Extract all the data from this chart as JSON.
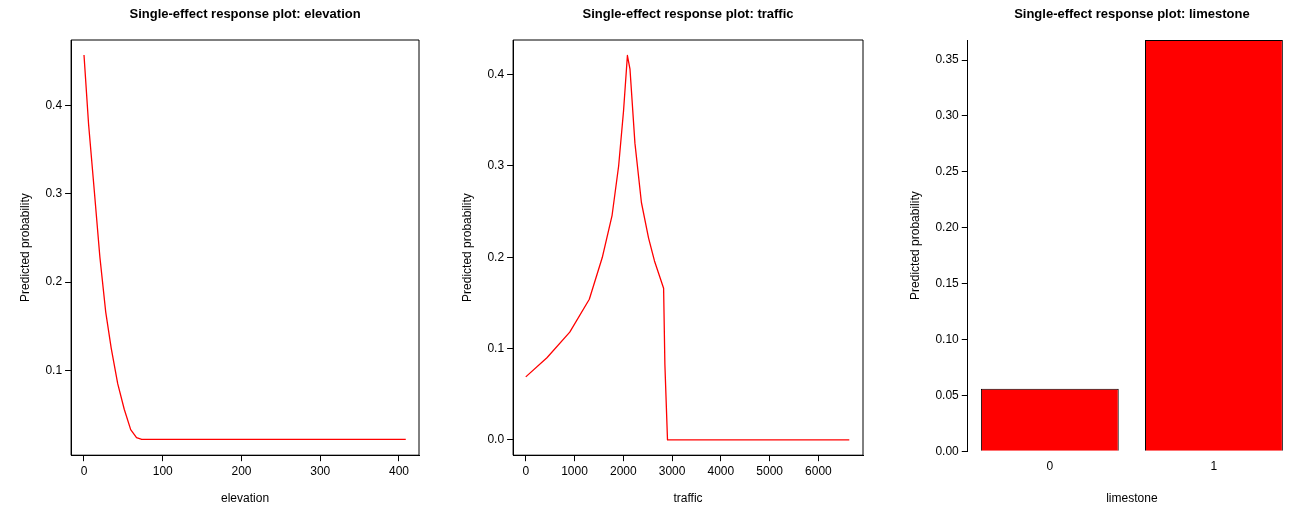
{
  "chart_data": [
    {
      "type": "line",
      "title": "Single-effect response plot: elevation",
      "xlabel": "elevation",
      "ylabel": "Predicted probability",
      "x": [
        0,
        5.8,
        13.2,
        20.2,
        27.6,
        34.6,
        42.8,
        51.1,
        59.3,
        66.7,
        73.3,
        408.6
      ],
      "series": [
        {
          "color": "#ff0000",
          "values": [
            0.457,
            0.379,
            0.302,
            0.228,
            0.166,
            0.125,
            0.085,
            0.056,
            0.033,
            0.024,
            0.022,
            0.022
          ]
        }
      ],
      "xlim": [
        -16.4,
        425.4
      ],
      "ylim": [
        0.004,
        0.474
      ],
      "xticks": [
        0,
        100,
        200,
        300,
        400
      ],
      "yticks": [
        0.1,
        0.2,
        0.3,
        0.4
      ]
    },
    {
      "type": "line",
      "title": "Single-effect response plot: traffic",
      "xlabel": "traffic",
      "ylabel": "Predicted probability",
      "x": [
        0,
        434,
        902,
        1303,
        1570,
        1770,
        1904,
        2004,
        2084,
        2137,
        2238,
        2371,
        2518,
        2639,
        2826,
        2852,
        2906,
        6633
      ],
      "series": [
        {
          "color": "#ff0000",
          "values": [
            0.069,
            0.09,
            0.118,
            0.154,
            0.2,
            0.246,
            0.3,
            0.36,
            0.421,
            0.406,
            0.325,
            0.26,
            0.221,
            0.196,
            0.166,
            0.083,
            0,
            0
          ]
        }
      ],
      "xlim": [
        -260,
        6914
      ],
      "ylim": [
        -0.0168,
        0.438
      ],
      "xticks": [
        0,
        1000,
        2000,
        3000,
        4000,
        5000,
        6000
      ],
      "yticks": [
        {
          "value": 0,
          "label": "0.0"
        },
        0.1,
        0.2,
        0.3,
        0.4
      ]
    },
    {
      "type": "bar",
      "title": "Single-effect response plot: limestone",
      "xlabel": "limestone",
      "ylabel": "Predicted probability",
      "categories": [
        "0",
        "1"
      ],
      "values": [
        0.056,
        0.368
      ],
      "color": "#ff0000",
      "ylim": [
        0,
        0.368
      ],
      "yticks": [
        {
          "value": 0,
          "label": "0.00"
        },
        {
          "value": 0.05,
          "label": "0.05"
        },
        {
          "value": 0.1,
          "label": "0.10"
        },
        {
          "value": 0.15,
          "label": "0.15"
        },
        {
          "value": 0.2,
          "label": "0.20"
        },
        {
          "value": 0.25,
          "label": "0.25"
        },
        {
          "value": 0.3,
          "label": "0.30"
        },
        {
          "value": 0.35,
          "label": "0.35"
        }
      ]
    }
  ]
}
